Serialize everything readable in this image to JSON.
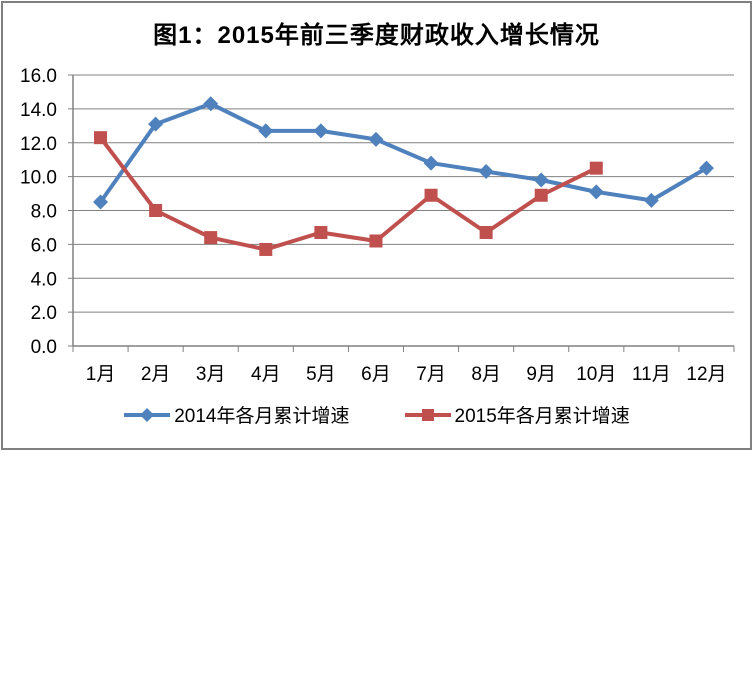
{
  "chart_data": {
    "type": "line",
    "title": "图1：2015年前三季度财政收入增长情况",
    "categories": [
      "1月",
      "2月",
      "3月",
      "4月",
      "5月",
      "6月",
      "7月",
      "8月",
      "9月",
      "10月",
      "11月",
      "12月"
    ],
    "series": [
      {
        "name": "2014年各月累计增速",
        "color": "#4F81BD",
        "marker": "diamond",
        "values": [
          8.5,
          13.1,
          14.3,
          12.7,
          12.7,
          12.2,
          10.8,
          10.3,
          9.8,
          9.1,
          8.6,
          10.5
        ]
      },
      {
        "name": "2015年各月累计增速",
        "color": "#C0504D",
        "marker": "square",
        "values": [
          12.3,
          8.0,
          6.4,
          5.7,
          6.7,
          6.2,
          8.9,
          6.7,
          8.9,
          10.5
        ]
      }
    ],
    "xlabel": "",
    "ylabel": "",
    "ylim": [
      0,
      16
    ],
    "ytick_step": 2,
    "ytick_labels": [
      "0.0",
      "2.0",
      "4.0",
      "6.0",
      "8.0",
      "10.0",
      "12.0",
      "14.0",
      "16.0"
    ],
    "grid": true,
    "grid_color": "#808080",
    "axis_color": "#808080",
    "legend_position": "bottom"
  }
}
